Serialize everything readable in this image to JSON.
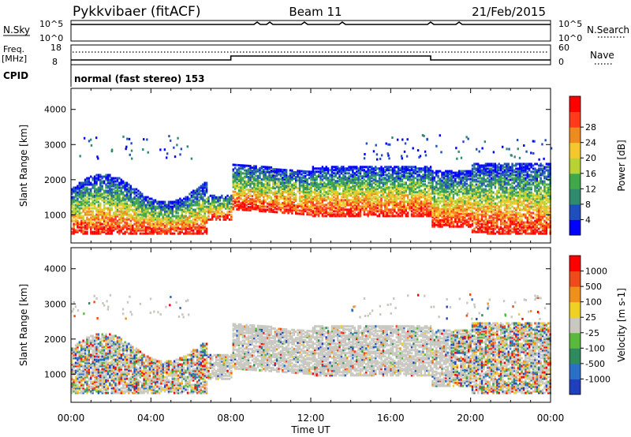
{
  "header": {
    "station": "Pykkvibaer (fitACF)",
    "beam": "Beam 11",
    "date": "21/Feb/2015"
  },
  "status_panels": {
    "nsky_label": "N.Sky",
    "nsky_ticks": [
      "10^5",
      "10^0"
    ],
    "nsearch_label": "N.Search",
    "nsearch_ticks": [
      "10^5",
      "10^0"
    ],
    "freq_label_1": "Freq.",
    "freq_label_2": "[MHz]",
    "freq_ticks": [
      "18",
      "8"
    ],
    "nave_label": "Nave",
    "nave_ticks": [
      "60",
      "0"
    ],
    "cpid_label": "CPID",
    "cpid_value": "normal (fast stereo) 153"
  },
  "chart_data": [
    {
      "type": "heatmap",
      "title": "",
      "parameter": "Power",
      "ylabel": "Slant Range [km]",
      "xlabel": "",
      "ylim": [
        200,
        4600
      ],
      "y_ticks": [
        "1000",
        "2000",
        "3000",
        "4000"
      ],
      "x_ticks": [
        "00:00",
        "04:00",
        "08:00",
        "12:00",
        "16:00",
        "20:00",
        "00:00"
      ],
      "colorbar": {
        "label": "Power [dB]",
        "ticks": [
          "4",
          "8",
          "12",
          "16",
          "20",
          "24",
          "28"
        ],
        "colors": [
          "#0000ff",
          "#1f4fbf",
          "#2f8a6e",
          "#3fa94a",
          "#b8d232",
          "#f4c72a",
          "#f08a1c",
          "#ff3b1a",
          "#ff0000"
        ]
      }
    },
    {
      "type": "heatmap",
      "title": "",
      "parameter": "Velocity",
      "ylabel": "Slant Range [km]",
      "xlabel": "Time UT",
      "ylim": [
        200,
        4600
      ],
      "y_ticks": [
        "1000",
        "2000",
        "3000",
        "4000"
      ],
      "x_ticks": [
        "00:00",
        "04:00",
        "08:00",
        "12:00",
        "16:00",
        "20:00",
        "00:00"
      ],
      "colorbar": {
        "label": "Velocity [m s-1]",
        "ticks": [
          "1000",
          "500",
          "100",
          "25",
          "-25",
          "-100",
          "-500",
          "-1000"
        ],
        "colors": [
          "#1f3fbf",
          "#2b6fc8",
          "#2f8a5e",
          "#5ab83a",
          "#c8c8c0",
          "#f0d020",
          "#f0901a",
          "#f04a18",
          "#ff0000"
        ]
      }
    }
  ]
}
